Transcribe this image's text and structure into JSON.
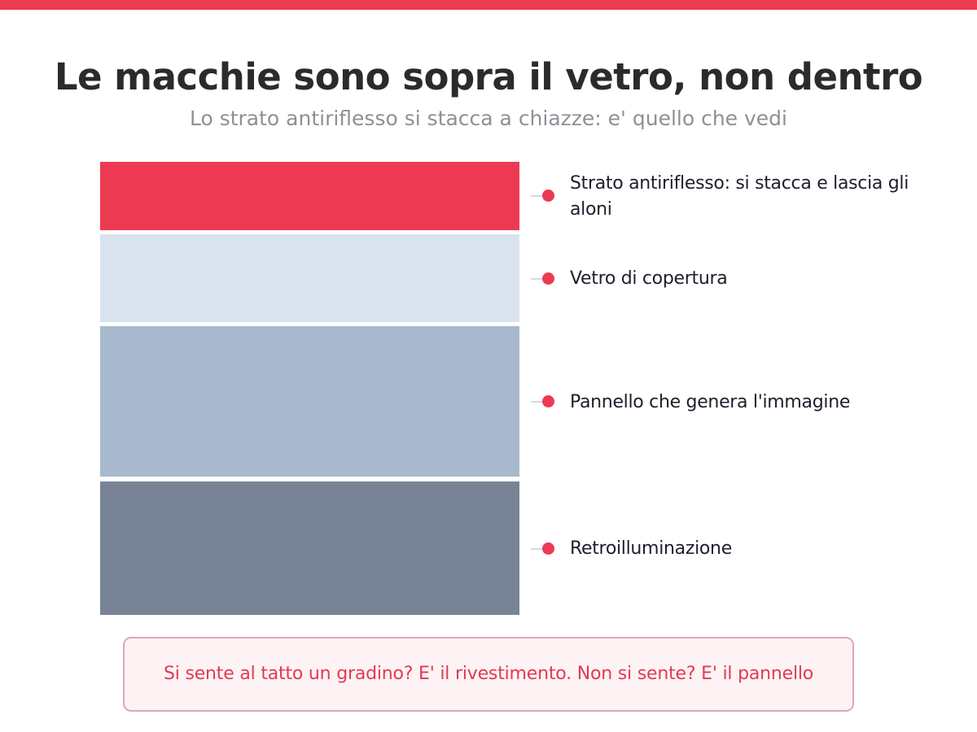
{
  "title": "Le macchie sono sopra il vetro, non dentro",
  "subtitle": "Lo strato antiriflesso si stacca a chiazze: e' quello che vedi",
  "layers": [
    {
      "label": "Strato antiriflesso: si stacca e lascia gli aloni",
      "color": "#ec3a52"
    },
    {
      "label": "Vetro di copertura",
      "color": "#d8e3ee"
    },
    {
      "label": "Pannello che genera l'immagine",
      "color": "#a8b9cd"
    },
    {
      "label": "Retroilluminazione",
      "color": "#788496"
    }
  ],
  "note": "Si sente al tatto un gradino? E' il rivestimento. Non si sente? E' il pannello",
  "colors": {
    "accent": "#ec3a52",
    "title": "#2b2b2e",
    "subtitle": "#8f9096"
  }
}
